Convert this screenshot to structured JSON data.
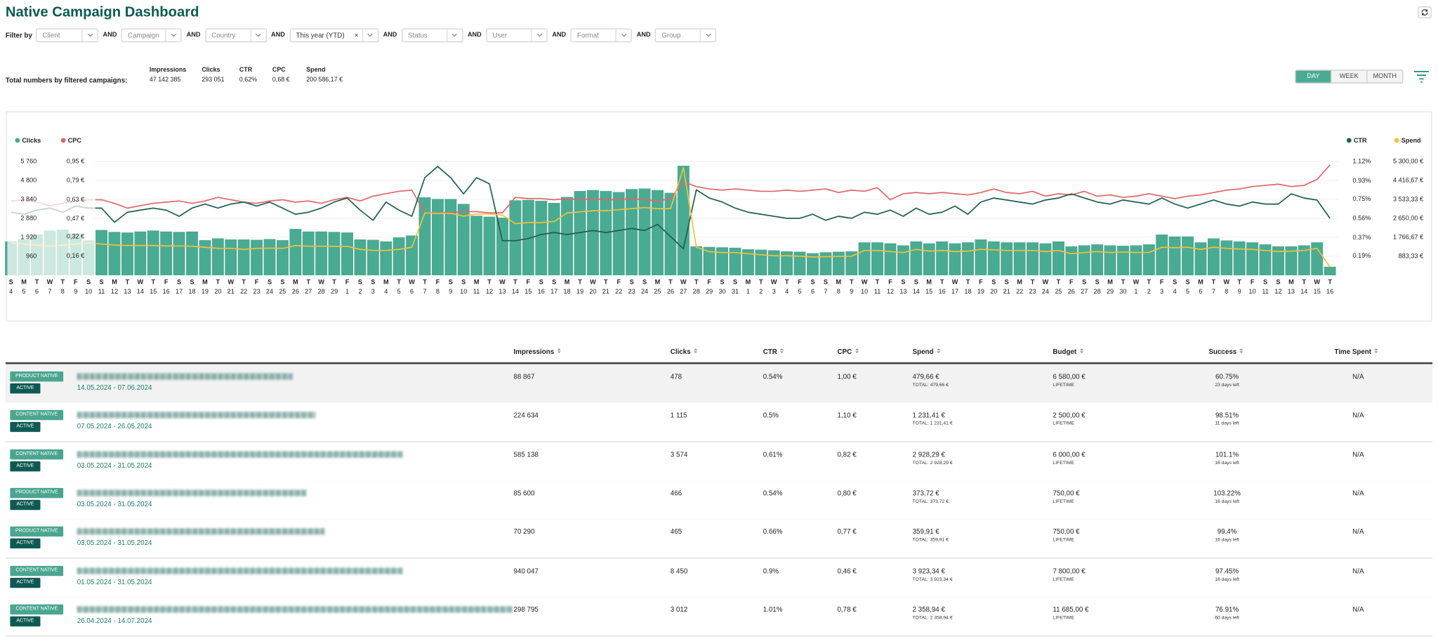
{
  "header": {
    "title": "Native Campaign Dashboard"
  },
  "filters": {
    "label": "Filter by",
    "joiner": "AND",
    "items": [
      "Client",
      "Campaign",
      "Country",
      "This year (YTD)",
      "Status",
      "User",
      "Format",
      "Group"
    ]
  },
  "totals": {
    "label": "Total numbers by filtered campaigns:",
    "items": [
      {
        "name": "Impressions",
        "value": "47 142 385"
      },
      {
        "name": "Clicks",
        "value": "293 051"
      },
      {
        "name": "CTR",
        "value": "0.62%"
      },
      {
        "name": "CPC",
        "value": "0,68 €"
      },
      {
        "name": "Spend",
        "value": "200 586,17 €"
      }
    ]
  },
  "period": {
    "options": [
      "DAY",
      "WEEK",
      "MONTH"
    ]
  },
  "chart_data": {
    "type": "bar",
    "grid": true,
    "weekdays": [
      "S",
      "M",
      "T",
      "W",
      "T",
      "F",
      "S",
      "S",
      "M",
      "T",
      "W",
      "T",
      "F",
      "S",
      "S",
      "M",
      "T",
      "W",
      "T",
      "F",
      "S",
      "S",
      "M",
      "T",
      "W",
      "T",
      "F",
      "S",
      "S",
      "M",
      "T",
      "W",
      "T",
      "F",
      "S",
      "S",
      "M",
      "T",
      "W",
      "T",
      "F",
      "S",
      "S",
      "M",
      "T",
      "W",
      "T",
      "F",
      "S",
      "S",
      "M",
      "T",
      "W",
      "T",
      "F",
      "S",
      "S",
      "M",
      "T",
      "W",
      "T",
      "F",
      "S",
      "S",
      "M",
      "T",
      "W",
      "T",
      "F",
      "S",
      "S",
      "M",
      "T",
      "W",
      "T",
      "F",
      "S",
      "S",
      "M",
      "T",
      "W",
      "T",
      "F",
      "S",
      "S",
      "M",
      "T",
      "W",
      "T",
      "F",
      "S",
      "S",
      "M",
      "T",
      "W",
      "T",
      "F",
      "S",
      "S",
      "M",
      "T",
      "W",
      "T"
    ],
    "categories": [
      "4",
      "5",
      "6",
      "7",
      "8",
      "9",
      "10",
      "11",
      "12",
      "13",
      "14",
      "15",
      "16",
      "17",
      "18",
      "19",
      "20",
      "21",
      "22",
      "23",
      "24",
      "25",
      "26",
      "27",
      "28",
      "29",
      "1",
      "2",
      "3",
      "4",
      "5",
      "6",
      "7",
      "8",
      "9",
      "10",
      "11",
      "12",
      "13",
      "14",
      "15",
      "16",
      "17",
      "18",
      "19",
      "20",
      "21",
      "22",
      "23",
      "24",
      "25",
      "26",
      "27",
      "28",
      "29",
      "30",
      "31",
      "1",
      "2",
      "3",
      "4",
      "5",
      "6",
      "7",
      "8",
      "9",
      "10",
      "11",
      "12",
      "13",
      "14",
      "15",
      "16",
      "17",
      "18",
      "19",
      "20",
      "21",
      "22",
      "23",
      "24",
      "25",
      "26",
      "27",
      "28",
      "29",
      "30",
      "1",
      "2",
      "3",
      "4",
      "5",
      "6",
      "7",
      "8",
      "9",
      "10",
      "11",
      "12",
      "13",
      "14",
      "15",
      "16"
    ],
    "ylim": [
      0,
      5760
    ],
    "yticks": [
      960,
      {
        "value": 1920,
        "label": "1 920"
      },
      {
        "value": 2880,
        "label": "2 880"
      },
      {
        "value": 3840,
        "label": "3 840"
      },
      {
        "value": 4800,
        "label": "4 800"
      },
      {
        "value": 5760,
        "label": "5 760"
      }
    ],
    "y2lim": [
      0,
      0.95
    ],
    "y2ticks": [
      {
        "value": 0.16,
        "label": "0,16 €"
      },
      {
        "value": 0.32,
        "label": "0,32 €"
      },
      {
        "value": 0.47,
        "label": "0,47 €"
      },
      {
        "value": 0.63,
        "label": "0,63 €"
      },
      {
        "value": 0.79,
        "label": "0,79 €"
      },
      {
        "value": 0.95,
        "label": "0,95 €"
      }
    ],
    "y3lim": [
      0,
      1.12
    ],
    "y3ticks": [
      {
        "value": 0.19,
        "label": "0.19%"
      },
      {
        "value": 0.37,
        "label": "0.37%"
      },
      {
        "value": 0.56,
        "label": "0.56%"
      },
      {
        "value": 0.75,
        "label": "0.75%"
      },
      {
        "value": 0.93,
        "label": "0.93%"
      },
      {
        "value": 1.12,
        "label": "1.12%"
      }
    ],
    "y4lim": [
      0,
      5300
    ],
    "y4ticks": [
      {
        "value": 883.33,
        "label": "883,33 €"
      },
      {
        "value": 1766.67,
        "label": "1 766,67 €"
      },
      {
        "value": 2650,
        "label": "2 650,00 €"
      },
      {
        "value": 3533.33,
        "label": "3 533,33 €"
      },
      {
        "value": 4416.67,
        "label": "4 416,67 €"
      },
      {
        "value": 5300,
        "label": "5 300,00 €"
      }
    ],
    "series": [
      {
        "name": "Clicks",
        "type": "bar",
        "axis": "y",
        "color": "#4aab93",
        "values": [
          1700,
          1800,
          2050,
          2250,
          2300,
          2100,
          1750,
          2280,
          2180,
          2150,
          2200,
          2250,
          2200,
          2180,
          2200,
          1760,
          1850,
          1800,
          1800,
          1780,
          1820,
          1760,
          2330,
          2200,
          2200,
          2180,
          2150,
          1800,
          1780,
          1700,
          1900,
          2000,
          3930,
          3850,
          3850,
          3600,
          3000,
          2950,
          2900,
          3780,
          3800,
          3760,
          3650,
          3950,
          4250,
          4300,
          4250,
          4200,
          4350,
          4380,
          4300,
          4160,
          5530,
          1450,
          1420,
          1400,
          1380,
          1300,
          1280,
          1250,
          1200,
          1180,
          1100,
          1150,
          1180,
          1200,
          1650,
          1650,
          1600,
          1500,
          1700,
          1600,
          1700,
          1600,
          1650,
          1800,
          1700,
          1650,
          1650,
          1650,
          1600,
          1700,
          1450,
          1500,
          1550,
          1500,
          1480,
          1500,
          1550,
          2050,
          1950,
          1950,
          1650,
          1850,
          1750,
          1700,
          1650,
          1550,
          1450,
          1450,
          1500,
          1650,
          420
        ]
      },
      {
        "name": "CPC",
        "type": "line",
        "axis": "y2",
        "color": "#e06666",
        "values": [
          0.62,
          0.63,
          0.61,
          0.58,
          0.6,
          0.62,
          0.63,
          0.63,
          0.6,
          0.56,
          0.58,
          0.6,
          0.61,
          0.62,
          0.6,
          0.62,
          0.65,
          0.63,
          0.61,
          0.6,
          0.62,
          0.63,
          0.61,
          0.62,
          0.6,
          0.63,
          0.65,
          0.62,
          0.66,
          0.68,
          0.7,
          0.71,
          0.52,
          0.52,
          0.52,
          0.53,
          0.53,
          0.52,
          0.52,
          0.65,
          0.64,
          0.64,
          0.63,
          0.64,
          0.63,
          0.64,
          0.63,
          0.63,
          0.64,
          0.63,
          0.62,
          0.64,
          0.78,
          0.74,
          0.72,
          0.71,
          0.72,
          0.71,
          0.7,
          0.7,
          0.71,
          0.7,
          0.71,
          0.72,
          0.69,
          0.71,
          0.7,
          0.73,
          0.63,
          0.68,
          0.69,
          0.68,
          0.69,
          0.68,
          0.67,
          0.69,
          0.72,
          0.69,
          0.68,
          0.7,
          0.66,
          0.68,
          0.67,
          0.7,
          0.66,
          0.67,
          0.65,
          0.66,
          0.68,
          0.66,
          0.64,
          0.66,
          0.67,
          0.69,
          0.71,
          0.72,
          0.74,
          0.75,
          0.76,
          0.74,
          0.75,
          0.8,
          0.92
        ]
      },
      {
        "name": "CTR",
        "type": "line",
        "axis": "y3",
        "color": "#1f5f4f",
        "values": [
          0.62,
          0.6,
          0.64,
          0.66,
          0.62,
          0.68,
          0.66,
          0.66,
          0.52,
          0.62,
          0.64,
          0.66,
          0.64,
          0.58,
          0.66,
          0.7,
          0.66,
          0.7,
          0.72,
          0.68,
          0.72,
          0.66,
          0.6,
          0.62,
          0.66,
          0.72,
          0.76,
          0.64,
          0.54,
          0.72,
          0.64,
          0.58,
          0.96,
          1.07,
          0.96,
          0.8,
          0.96,
          0.9,
          0.34,
          0.34,
          0.36,
          0.4,
          0.42,
          0.4,
          0.42,
          0.44,
          0.42,
          0.44,
          0.46,
          0.44,
          0.5,
          0.38,
          0.26,
          0.84,
          0.76,
          0.72,
          0.66,
          0.62,
          0.6,
          0.58,
          0.56,
          0.56,
          0.6,
          0.54,
          0.58,
          0.56,
          0.62,
          0.6,
          0.64,
          0.58,
          0.66,
          0.6,
          0.62,
          0.68,
          0.6,
          0.72,
          0.76,
          0.74,
          0.72,
          0.7,
          0.74,
          0.76,
          0.8,
          0.76,
          0.72,
          0.7,
          0.74,
          0.72,
          0.7,
          0.76,
          0.7,
          0.66,
          0.7,
          0.74,
          0.7,
          0.68,
          0.72,
          0.7,
          0.7,
          0.8,
          0.76,
          0.74,
          0.56
        ]
      },
      {
        "name": "Spend",
        "type": "line",
        "axis": "y4",
        "color": "#f0c23b",
        "values": [
          1500,
          1450,
          1400,
          1350,
          1400,
          1450,
          1500,
          1450,
          1400,
          1380,
          1380,
          1380,
          1360,
          1360,
          1350,
          1300,
          1250,
          1250,
          1200,
          1250,
          1260,
          1250,
          1380,
          1350,
          1350,
          1340,
          1340,
          1200,
          1150,
          1150,
          1200,
          1300,
          2900,
          2880,
          2880,
          2750,
          2850,
          2850,
          2800,
          2400,
          2450,
          2450,
          2500,
          2900,
          2950,
          3000,
          3000,
          3050,
          3100,
          3150,
          3100,
          3100,
          5000,
          1300,
          1100,
          1050,
          1050,
          1000,
          950,
          900,
          900,
          880,
          850,
          860,
          870,
          880,
          1150,
          1150,
          1100,
          1050,
          1200,
          1120,
          1150,
          1100,
          1120,
          1200,
          1180,
          1150,
          1150,
          1150,
          1100,
          1150,
          1000,
          1050,
          1100,
          1050,
          1080,
          1050,
          1060,
          1300,
          1280,
          1300,
          1200,
          1300,
          1250,
          1220,
          1200,
          1150,
          1100,
          1120,
          1150,
          1250,
          380
        ]
      }
    ]
  },
  "table": {
    "headers": [
      "Impressions",
      "Clicks",
      "CTR",
      "CPC",
      "Spend",
      "Budget",
      "Success",
      "Time Spent"
    ],
    "rows": [
      {
        "type": "PRODUCT NATIVE",
        "status": "ACTIVE",
        "dates": "14.05.2024 - 07.06.2024",
        "impressions": "88 867",
        "clicks": "478",
        "ctr": "0.54%",
        "cpc": "1,00 €",
        "spend": "479,66 €",
        "spend_total": "TOTAL: 479,66 €",
        "budget": "6 580,00 €",
        "budget_type": "LIFETIME",
        "success": "60.75%",
        "days_left": "23 days left",
        "time_spent": "N/A"
      },
      {
        "type": "CONTENT NATIVE",
        "status": "ACTIVE",
        "dates": "07.05.2024 - 26.05.2024",
        "impressions": "224 634",
        "clicks": "1 115",
        "ctr": "0.5%",
        "cpc": "1,10 €",
        "spend": "1 231,41 €",
        "spend_total": "TOTAL: 1 231,41 €",
        "budget": "2 500,00 €",
        "budget_type": "LIFETIME",
        "success": "98.51%",
        "days_left": "11 days left",
        "time_spent": "N/A"
      },
      {
        "type": "CONTENT NATIVE",
        "status": "ACTIVE",
        "dates": "03.05.2024 - 31.05.2024",
        "impressions": "585 138",
        "clicks": "3 574",
        "ctr": "0.61%",
        "cpc": "0,82 €",
        "spend": "2 928,29 €",
        "spend_total": "TOTAL: 2 928,29 €",
        "budget": "6 000,00 €",
        "budget_type": "LIFETIME",
        "success": "101.1%",
        "days_left": "16 days left",
        "time_spent": "N/A"
      },
      {
        "type": "PRODUCT NATIVE",
        "status": "ACTIVE",
        "dates": "03.05.2024 - 31.05.2024",
        "impressions": "85 600",
        "clicks": "466",
        "ctr": "0.54%",
        "cpc": "0,80 €",
        "spend": "373,72 €",
        "spend_total": "TOTAL: 373,72 €",
        "budget": "750,00 €",
        "budget_type": "LIFETIME",
        "success": "103.22%",
        "days_left": "16 days left",
        "time_spent": "N/A"
      },
      {
        "type": "PRODUCT NATIVE",
        "status": "ACTIVE",
        "dates": "03.05.2024 - 31.05.2024",
        "impressions": "70 290",
        "clicks": "465",
        "ctr": "0.66%",
        "cpc": "0,77 €",
        "spend": "359,91 €",
        "spend_total": "TOTAL: 359,91 €",
        "budget": "750,00 €",
        "budget_type": "LIFETIME",
        "success": "99.4%",
        "days_left": "16 days left",
        "time_spent": "N/A"
      },
      {
        "type": "CONTENT NATIVE",
        "status": "ACTIVE",
        "dates": "01.05.2024 - 31.05.2024",
        "impressions": "940 047",
        "clicks": "8 450",
        "ctr": "0.9%",
        "cpc": "0,46 €",
        "spend": "3 923,34 €",
        "spend_total": "TOTAL: 3 923,34 €",
        "budget": "7 800,00 €",
        "budget_type": "LIFETIME",
        "success": "97.45%",
        "days_left": "16 days left",
        "time_spent": "N/A"
      },
      {
        "type": "CONTENT NATIVE",
        "status": "ACTIVE",
        "dates": "26.04.2024 - 14.07.2024",
        "impressions": "298 795",
        "clicks": "3 012",
        "ctr": "1.01%",
        "cpc": "0,78 €",
        "spend": "2 358,94 €",
        "spend_total": "TOTAL: 2 358,94 €",
        "budget": "11 685,00 €",
        "budget_type": "LIFETIME",
        "success": "76.91%",
        "days_left": "60 days left",
        "time_spent": "N/A"
      }
    ]
  }
}
